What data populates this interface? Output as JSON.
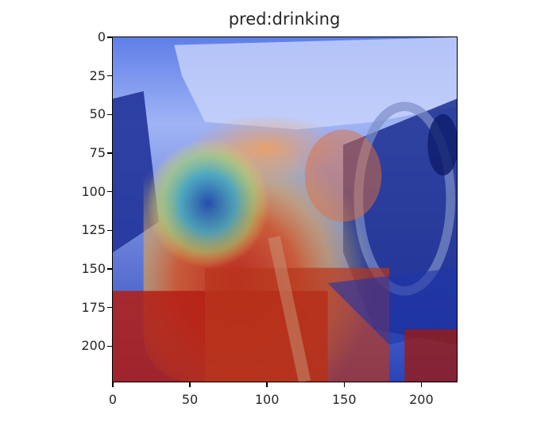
{
  "title": "pred:drinking",
  "axes": {
    "y_ticks": [
      "0",
      "25",
      "50",
      "75",
      "100",
      "125",
      "150",
      "175",
      "200"
    ],
    "x_ticks": [
      "0",
      "50",
      "100",
      "150",
      "200"
    ]
  },
  "image": {
    "description_icon": "heatmap-overlay-image",
    "colormap": "jet",
    "colors": {
      "hot": "#b41e14",
      "warm": "#e8702a",
      "mid": "#e8d95a",
      "cool": "#3aa8c8",
      "cold": "#1e36a8"
    }
  }
}
